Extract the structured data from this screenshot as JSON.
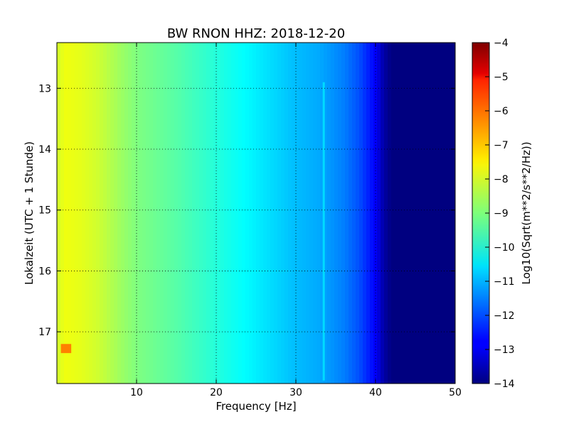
{
  "chart_data": {
    "type": "heatmap",
    "title": "BW RNON HHZ: 2018-12-20",
    "xlabel": "Frequency [Hz]",
    "ylabel": "Lokalzeit (UTC + 1 Stunde)",
    "xlim": [
      0,
      50
    ],
    "ylim": [
      12.25,
      17.85
    ],
    "y_inverted": true,
    "x_ticks": [
      10,
      20,
      30,
      40,
      50
    ],
    "y_ticks": [
      13,
      14,
      15,
      16,
      17
    ],
    "grid": true,
    "colormap": "jet",
    "colorbar": {
      "label": "Log10(Sqrt(m**2/s**2/Hz))",
      "range": [
        -14,
        -4
      ],
      "ticks": [
        -4,
        -5,
        -6,
        -7,
        -8,
        -9,
        -10,
        -11,
        -12,
        -13,
        -14
      ]
    },
    "spectrum_profile": {
      "frequency_hz": [
        0,
        1,
        3,
        5,
        8,
        10,
        15,
        20,
        25,
        30,
        33,
        36,
        38,
        40,
        41,
        42,
        50
      ],
      "log10_amplitude": [
        -8.2,
        -7.9,
        -8.0,
        -8.2,
        -8.7,
        -9.0,
        -9.4,
        -9.9,
        -10.4,
        -10.9,
        -11.1,
        -11.5,
        -12.0,
        -12.8,
        -13.6,
        -14.0,
        -14.0
      ]
    },
    "annotations": [
      {
        "label": "high-amplitude patch",
        "frequency_hz": [
          0.5,
          1.8
        ],
        "time": [
          17.2,
          17.35
        ],
        "log10_amplitude": -6.5
      },
      {
        "label": "line near 33 Hz",
        "frequency_hz": 33.5,
        "time": [
          12.9,
          17.8
        ],
        "log10_amplitude": -10.6
      }
    ]
  }
}
